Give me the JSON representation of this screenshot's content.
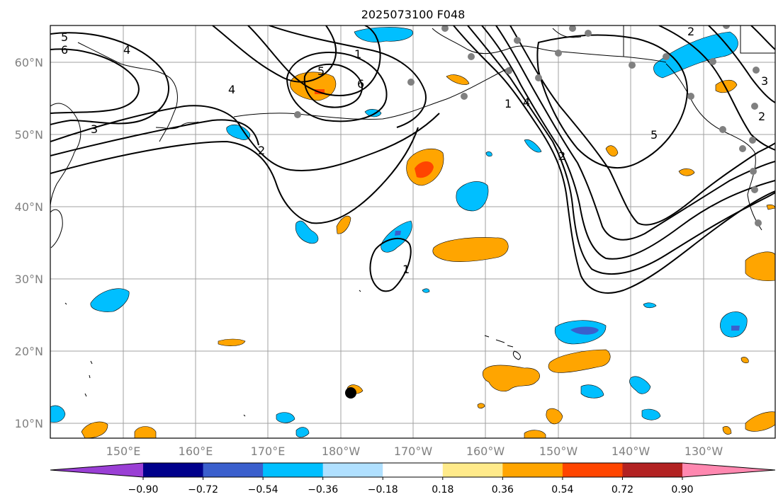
{
  "title": "2025073100 F048",
  "lat_labels": [
    "60°N",
    "50°N",
    "40°N",
    "30°N",
    "20°N",
    "10°N"
  ],
  "lon_labels": [
    "150°E",
    "160°E",
    "170°E",
    "180°W",
    "170°W",
    "160°W",
    "150°W",
    "140°W",
    "130°W"
  ],
  "colorbar": {
    "colors": [
      "#9a3fd5",
      "#00008b",
      "#3a5fcd",
      "#00bfff",
      "#b0e0ff",
      "#ffffff",
      "#ffea8a",
      "#ffa500",
      "#ff4500",
      "#b22222",
      "#ff88b0"
    ],
    "tick_labels": [
      "−0.90",
      "−0.72",
      "−0.54",
      "−0.36",
      "−0.18",
      "0.18",
      "0.36",
      "0.54",
      "0.72",
      "0.90"
    ]
  },
  "contour_labels": [
    "5",
    "6",
    "4",
    "3",
    "2",
    "4",
    "5",
    "1",
    "6",
    "1",
    "1",
    "4",
    "2",
    "5",
    "2",
    "3",
    "2"
  ],
  "colors": {
    "land_outline": "#000000",
    "contour": "#000000",
    "station": "#808080",
    "storm_center": "#000000"
  }
}
